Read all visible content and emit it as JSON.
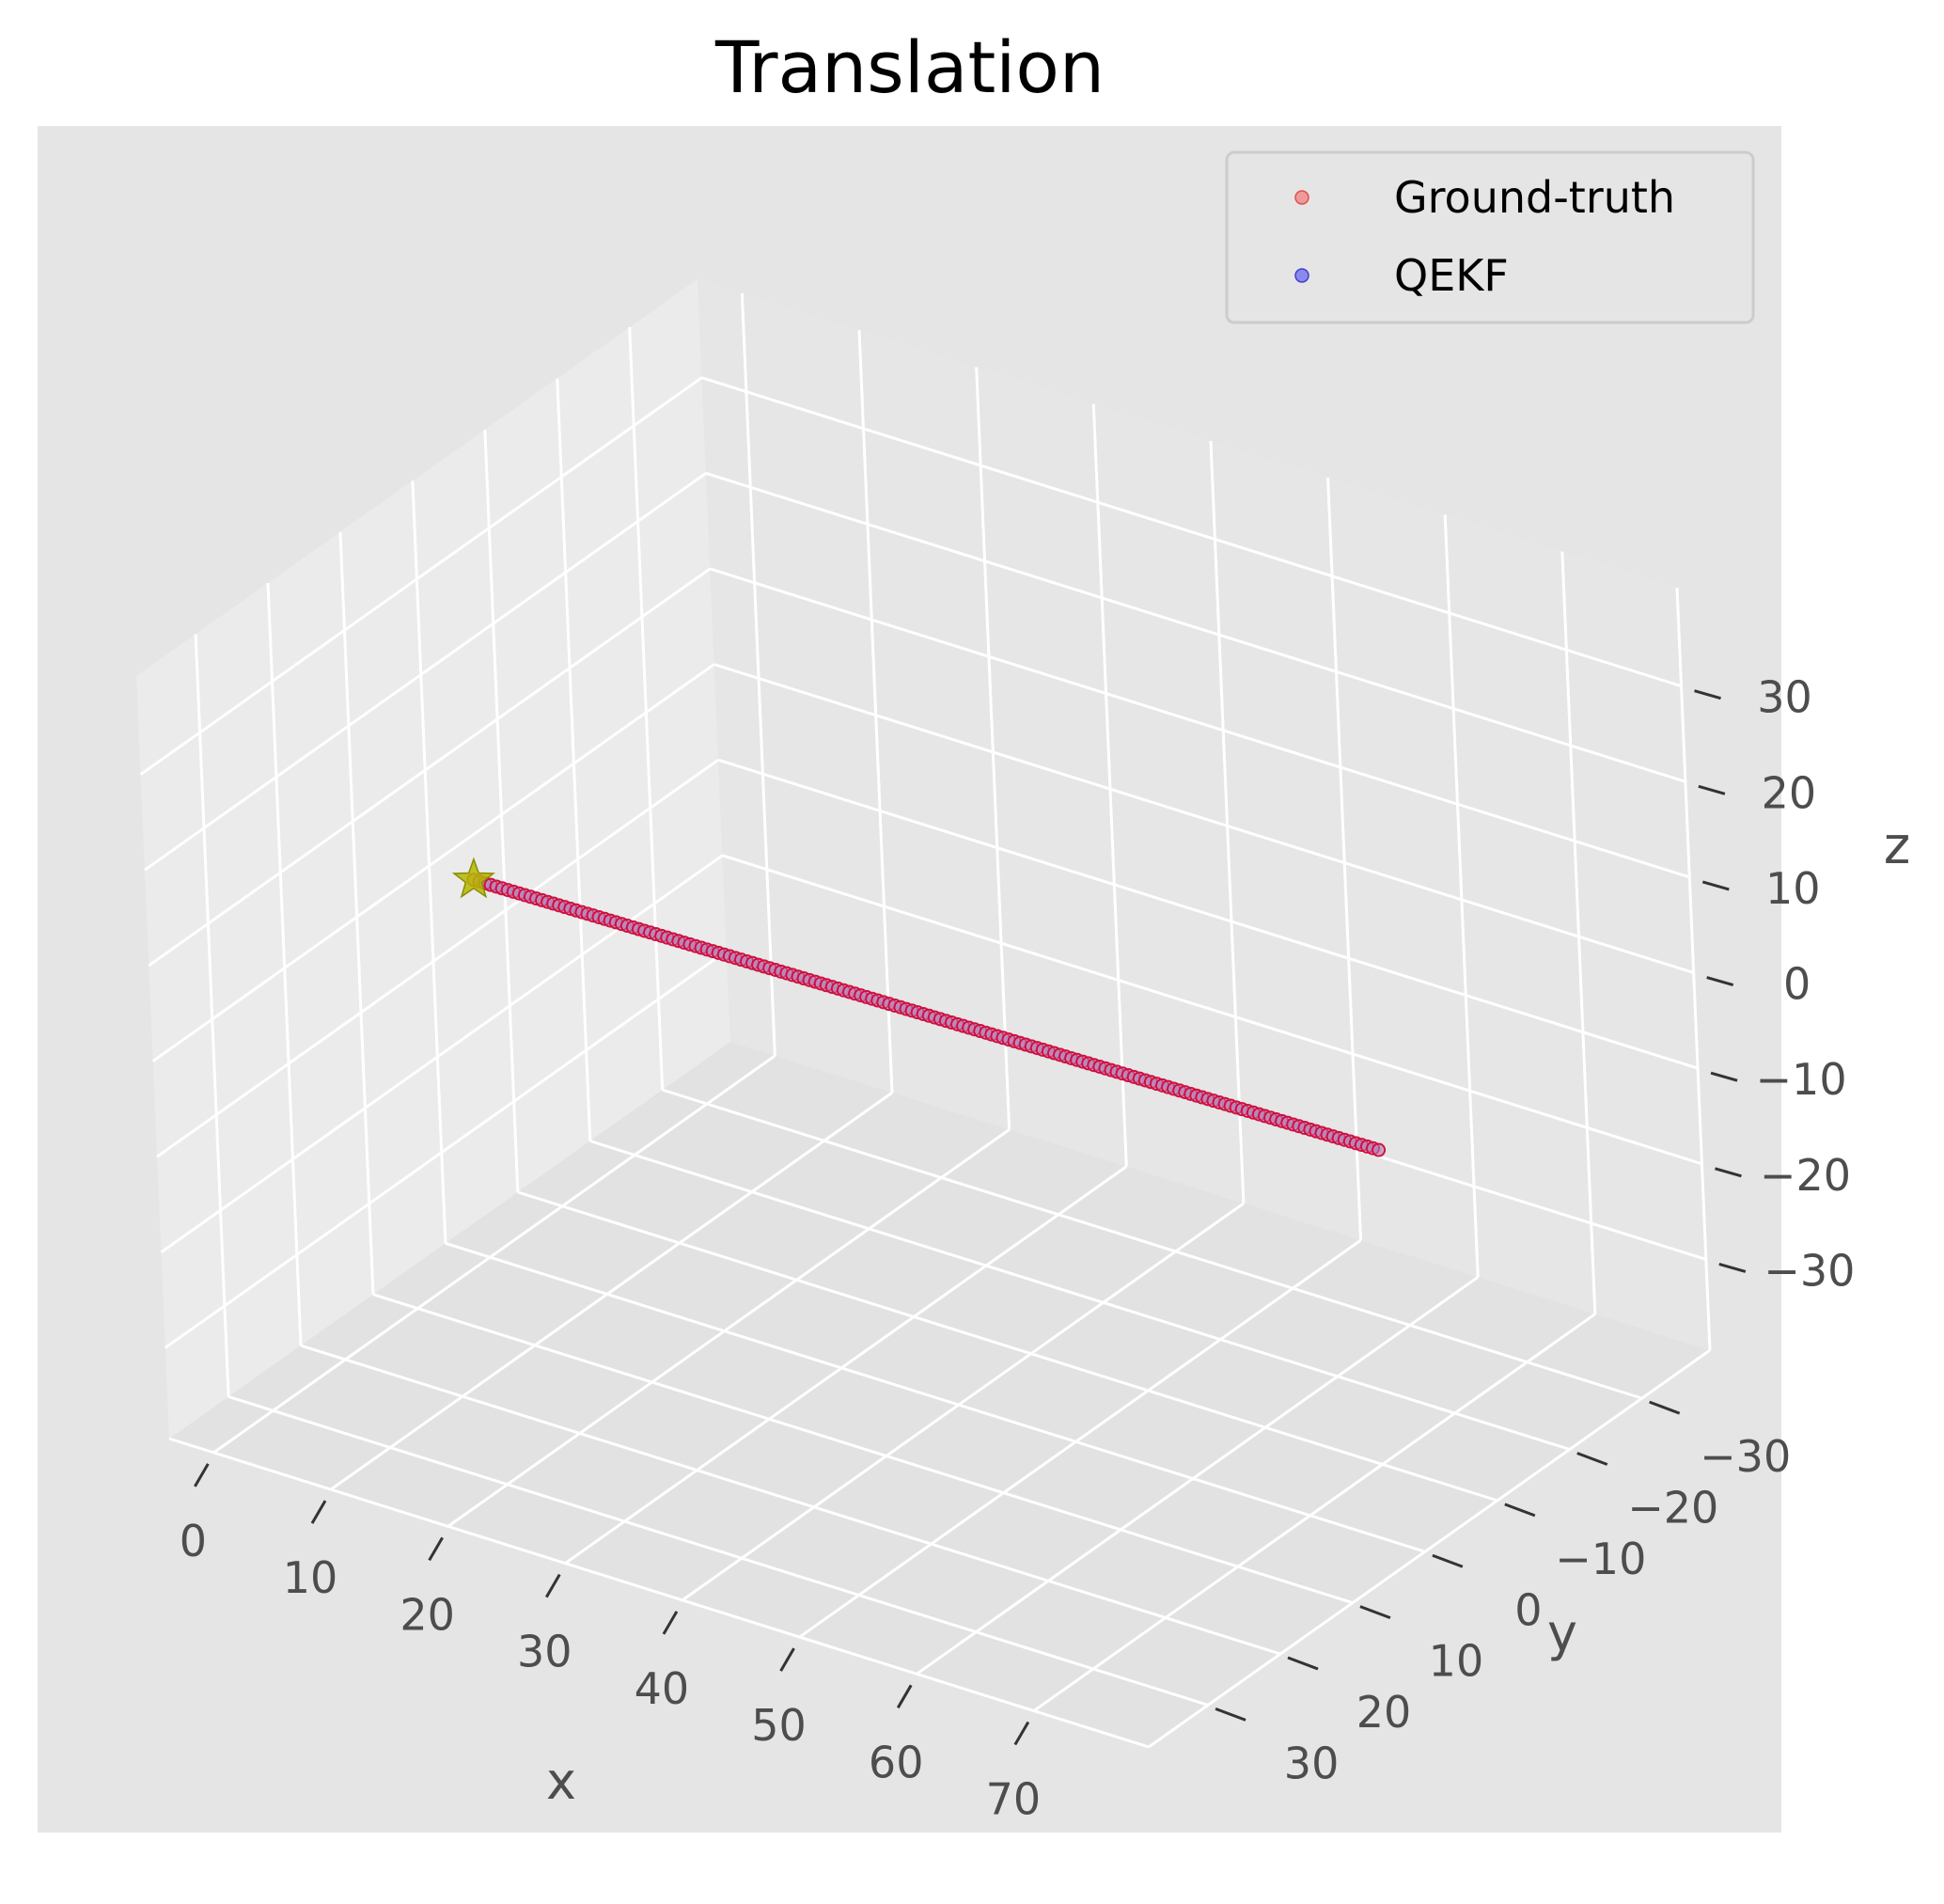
{
  "chart_data": {
    "type": "scatter",
    "projection": "3d",
    "title": "Translation",
    "xlabel": "x",
    "ylabel": "y",
    "zlabel": "z",
    "x_ticks": [
      "0",
      "10",
      "20",
      "30",
      "40",
      "50",
      "60",
      "70"
    ],
    "y_ticks": [
      "−30",
      "−20",
      "−10",
      "0",
      "10",
      "20",
      "30"
    ],
    "z_ticks": [
      "−30",
      "−20",
      "−10",
      "0",
      "10",
      "20",
      "30"
    ],
    "xlim": [
      -3.8,
      79.8
    ],
    "ylim": [
      -39.4,
      38.2
    ],
    "zlim": [
      -39.5,
      40.3
    ],
    "grid": true,
    "legend_position": "top-right",
    "start_marker": {
      "shape": "star",
      "color": "#b5b800",
      "x": 0,
      "y": 0,
      "z": 0
    },
    "series": [
      {
        "name": "Ground-truth",
        "color": "#f08080",
        "start": {
          "x": 0,
          "y": 0,
          "z": 0
        },
        "end": {
          "x": 76,
          "y": -2,
          "z": 0
        },
        "n_points": 160
      },
      {
        "name": "QEKF",
        "color": "#6b6bf0",
        "start": {
          "x": 0,
          "y": 0,
          "z": 0
        },
        "end": {
          "x": 76,
          "y": -2,
          "z": 0
        },
        "n_points": 160
      }
    ],
    "overlap_color": "#cc1144"
  }
}
